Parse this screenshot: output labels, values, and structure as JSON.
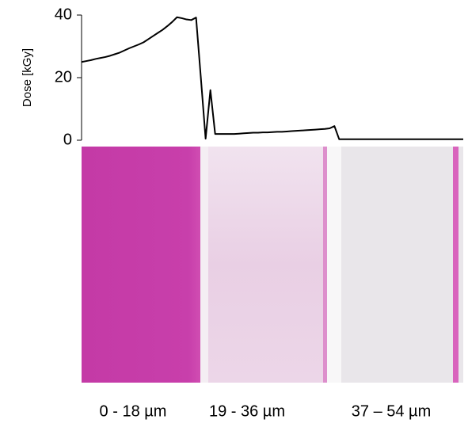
{
  "chart_data": {
    "type": "line",
    "y_label": "Dose  [kGy]",
    "ylim": [
      0,
      40
    ],
    "yticks": [
      0,
      20,
      40
    ],
    "color": "#000000",
    "values": [
      25,
      25.3,
      25.6,
      26,
      26.3,
      26.6,
      27,
      27.5,
      28,
      28.7,
      29.4,
      30,
      30.6,
      31.3,
      32.3,
      33.3,
      34.3,
      35.3,
      36.5,
      37.8,
      39.3,
      39,
      38.6,
      38.4,
      39.2,
      20,
      0.5,
      16,
      2,
      2,
      2,
      2,
      2,
      2.1,
      2.2,
      2.3,
      2.4,
      2.4,
      2.5,
      2.5,
      2.6,
      2.7,
      2.7,
      2.8,
      2.9,
      3,
      3.1,
      3.2,
      3.3,
      3.4,
      3.5,
      3.6,
      3.8,
      4.5,
      0.3,
      0.3,
      0.3,
      0.3,
      0.3,
      0.3,
      0.3,
      0.3,
      0.3,
      0.3,
      0.3,
      0.3,
      0.3,
      0.3,
      0.3,
      0.3,
      0.3,
      0.3,
      0.3,
      0.3,
      0.3,
      0.3,
      0.3,
      0.3,
      0.3,
      0.3,
      0.3
    ],
    "annotations": [
      "0 - 18 µm",
      "19 - 36 µm",
      "37 – 54 µm"
    ]
  }
}
